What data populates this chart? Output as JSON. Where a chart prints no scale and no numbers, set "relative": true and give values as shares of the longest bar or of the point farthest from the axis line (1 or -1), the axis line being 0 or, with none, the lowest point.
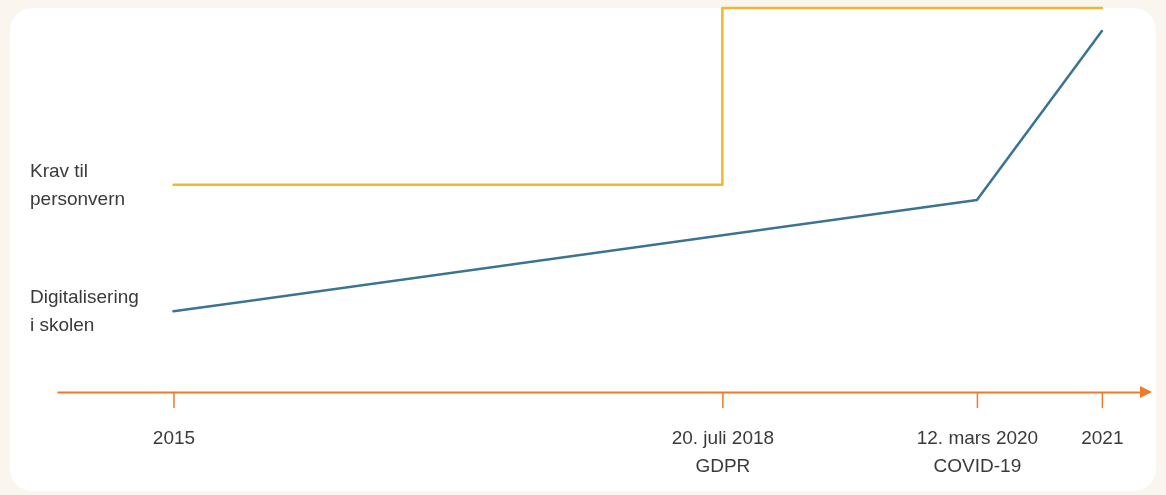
{
  "chart_data": {
    "type": "line",
    "relative": true,
    "xlim": [
      "2014-04-01",
      "2021-04-01"
    ],
    "xticks": [
      {
        "value": "2015-01-01",
        "label": "2015"
      },
      {
        "value": "2018-07-20",
        "label": "20. juli 2018\nGDPR"
      },
      {
        "value": "2020-03-12",
        "label": "12. mars 2020\nCOVID-19"
      },
      {
        "value": "2021-01-01",
        "label": "2021"
      }
    ],
    "series": [
      {
        "name": "Krav til personvern",
        "type": "step",
        "color": "#f0b733",
        "x": [
          "2015-01-01",
          "2018-07-20",
          "2021-01-01"
        ],
        "values": [
          0.54,
          1,
          1
        ]
      },
      {
        "name": "Digitalisering i skolen",
        "type": "line",
        "color": "#3b7392",
        "x": [
          "2015-01-01",
          "2020-03-12",
          "2021-01-01"
        ],
        "values": [
          0.21,
          0.5,
          0.94
        ]
      }
    ]
  }
}
